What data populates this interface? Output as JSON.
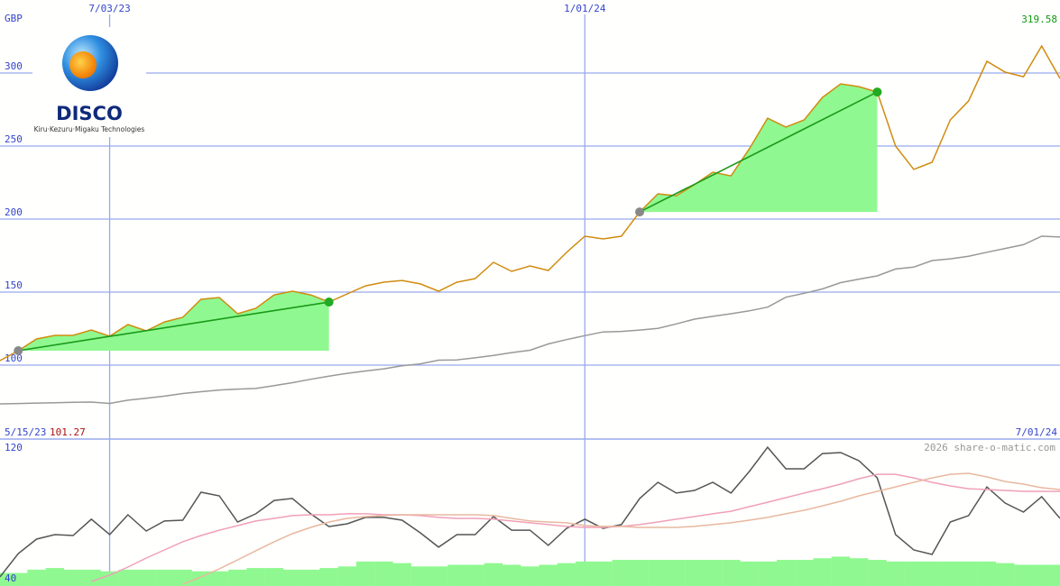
{
  "logo": {
    "name": "DISCO",
    "tagline": "Kiru·Kezuru·Migaku Technologies"
  },
  "footer": "2026 share-o-matic.com",
  "chart_data": [
    {
      "type": "line",
      "currency": "GBP",
      "high_label": 319.58,
      "low_label": 101.27,
      "categories": [
        "5/15/23",
        null,
        null,
        null,
        null,
        null,
        "7/03/23",
        null,
        null,
        null,
        null,
        null,
        null,
        null,
        null,
        null,
        null,
        null,
        null,
        null,
        null,
        null,
        null,
        null,
        null,
        null,
        null,
        null,
        null,
        null,
        null,
        null,
        "1/01/24",
        null,
        null,
        null,
        null,
        null,
        null,
        null,
        null,
        null,
        null,
        null,
        null,
        null,
        null,
        null,
        null,
        null,
        null,
        null,
        null,
        null,
        null,
        null,
        null,
        null,
        "7/01/24"
      ],
      "ylim": [
        49.4,
        350
      ],
      "yticks": [
        100,
        150,
        200,
        250,
        300
      ],
      "grid": true,
      "series": [
        {
          "color": "#d08c10",
          "values": [
            103.1,
            109.9,
            117.9,
            120.4,
            120.4,
            124.1,
            119.8,
            127.8,
            123.5,
            129.6,
            132.7,
            145.1,
            146.3,
            135.2,
            138.9,
            148.1,
            150.6,
            148.1,
            143.2,
            148.8,
            154.3,
            156.8,
            158.0,
            155.6,
            150.6,
            156.8,
            159.3,
            170.4,
            164.2,
            167.9,
            164.8,
            177.2,
            188.3,
            186.4,
            188.3,
            204.9,
            217.3,
            216.0,
            223.5,
            232.1,
            229.6,
            248.1,
            269.1,
            263.0,
            267.9,
            283.3,
            292.6,
            290.7,
            287.0,
            250.0,
            234.0,
            238.9,
            267.9,
            280.9,
            308.0,
            300.6,
            297.5,
            318.5,
            296.3
          ]
        },
        {
          "color": "#999999",
          "values": [
            73.5,
            73.7,
            74.0,
            74.3,
            74.6,
            74.7,
            73.8,
            76.0,
            77.3,
            78.8,
            80.6,
            81.8,
            83.0,
            83.6,
            84.0,
            86.0,
            88.0,
            90.3,
            92.5,
            94.4,
            96.0,
            97.5,
            99.6,
            100.9,
            103.4,
            103.6,
            105.0,
            106.6,
            108.6,
            110.2,
            114.5,
            117.5,
            120.2,
            122.7,
            123.1,
            124.0,
            125.2,
            128.2,
            131.5,
            133.4,
            135.2,
            137.2,
            139.7,
            146.5,
            149.2,
            152.2,
            156.5,
            158.9,
            161.1,
            165.8,
            167.1,
            171.6,
            172.8,
            174.6,
            177.3,
            179.9,
            182.5,
            188.3,
            187.7
          ]
        }
      ],
      "trends": [
        {
          "from": 1,
          "to": 18,
          "color": "#90f890"
        },
        {
          "from": 35,
          "to": 48,
          "color": "#90f890"
        }
      ]
    },
    {
      "type": "line",
      "ylim": [
        35,
        125
      ],
      "yticks": [
        40,
        120
      ],
      "volume": {
        "color": "#90f890",
        "values": [
          43,
          43,
          45,
          46,
          45,
          45,
          44,
          45,
          45,
          45,
          45,
          44,
          44,
          45,
          46,
          46,
          45,
          45,
          46,
          47,
          50,
          50,
          49,
          47,
          47,
          48,
          48,
          49,
          48,
          47,
          48,
          49,
          50,
          50,
          51,
          51,
          51,
          51,
          51,
          51,
          51,
          50,
          50,
          51,
          51,
          52,
          53,
          52,
          51,
          50,
          50,
          50,
          50,
          50,
          50,
          49,
          48,
          48,
          48
        ]
      },
      "series": [
        {
          "color": "#e8b8a0",
          "values": [
            null,
            null,
            null,
            null,
            null,
            null,
            null,
            null,
            null,
            null,
            36.1,
            40.6,
            45.5,
            51.0,
            56.6,
            62.1,
            67.0,
            70.9,
            74.2,
            76.4,
            77.5,
            78.1,
            78.6,
            78.6,
            78.6,
            78.6,
            78.6,
            78.1,
            76.4,
            74.8,
            74.2,
            73.7,
            72.0,
            71.5,
            71.5,
            70.9,
            70.9,
            70.9,
            71.5,
            72.6,
            73.7,
            75.3,
            77.0,
            79.2,
            81.4,
            84.1,
            86.9,
            90.2,
            93.0,
            95.7,
            98.5,
            101.2,
            103.4,
            104.0,
            101.8,
            99.0,
            97.4,
            95.2,
            94.1
          ]
        },
        {
          "color": "#f0a0b8",
          "values": [
            null,
            null,
            null,
            null,
            null,
            37.8,
            41.7,
            46.6,
            52.1,
            57.1,
            62.1,
            65.9,
            69.2,
            72.0,
            74.8,
            76.4,
            78.1,
            78.6,
            78.6,
            79.2,
            79.2,
            78.6,
            78.6,
            78.1,
            77.0,
            76.4,
            76.4,
            75.9,
            74.8,
            73.7,
            72.6,
            71.5,
            70.9,
            70.9,
            71.5,
            72.6,
            74.2,
            75.9,
            77.5,
            79.2,
            80.8,
            83.6,
            86.3,
            89.1,
            91.9,
            94.6,
            97.4,
            100.7,
            103.4,
            103.4,
            101.2,
            98.5,
            96.3,
            94.6,
            94.1,
            93.5,
            93.0,
            93.0,
            93.0
          ]
        },
        {
          "color": "#555555",
          "values": [
            40.6,
            54.9,
            63.7,
            66.5,
            65.9,
            75.9,
            66.5,
            78.6,
            68.7,
            74.8,
            75.3,
            92.4,
            90.2,
            74.2,
            79.2,
            87.4,
            88.6,
            79.2,
            71.4,
            73.1,
            77.0,
            77.0,
            75.3,
            67.6,
            58.8,
            66.5,
            66.5,
            77.5,
            69.2,
            69.2,
            59.9,
            70.3,
            75.9,
            70.3,
            72.6,
            88.6,
            98.5,
            91.9,
            93.5,
            98.5,
            91.9,
            105.1,
            120.0,
            106.8,
            106.8,
            116.1,
            116.7,
            111.7,
            101.2,
            66.5,
            57.1,
            54.3,
            74.2,
            78.1,
            95.7,
            85.8,
            80.3,
            89.7,
            76.4
          ]
        }
      ]
    }
  ]
}
